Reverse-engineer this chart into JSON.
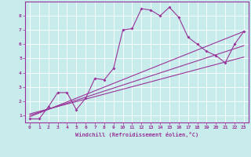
{
  "xlabel": "Windchill (Refroidissement éolien,°C)",
  "bg_color": "#c8ecec",
  "grid_color": "#ffffff",
  "line_color": "#993399",
  "xlim": [
    -0.5,
    23.5
  ],
  "ylim": [
    0.5,
    9.0
  ],
  "xticks": [
    0,
    1,
    2,
    3,
    4,
    5,
    6,
    7,
    8,
    9,
    10,
    11,
    12,
    13,
    14,
    15,
    16,
    17,
    18,
    19,
    20,
    21,
    22,
    23
  ],
  "yticks": [
    1,
    2,
    3,
    4,
    5,
    6,
    7,
    8
  ],
  "curve1_x": [
    0,
    1,
    2,
    3,
    4,
    5,
    6,
    7,
    8,
    9,
    10,
    11,
    12,
    13,
    14,
    15,
    16,
    17,
    18,
    19,
    20,
    21,
    22,
    23
  ],
  "curve1_y": [
    0.75,
    0.75,
    1.6,
    2.6,
    2.6,
    1.4,
    2.2,
    3.6,
    3.5,
    4.3,
    7.0,
    7.1,
    8.5,
    8.4,
    8.0,
    8.6,
    7.9,
    6.5,
    6.0,
    5.5,
    5.2,
    4.7,
    6.0,
    6.9
  ],
  "line1_x": [
    0,
    23
  ],
  "line1_y": [
    0.9,
    6.9
  ],
  "line2_x": [
    0,
    23
  ],
  "line2_y": [
    1.0,
    5.9
  ],
  "line3_x": [
    0,
    23
  ],
  "line3_y": [
    1.1,
    5.1
  ]
}
